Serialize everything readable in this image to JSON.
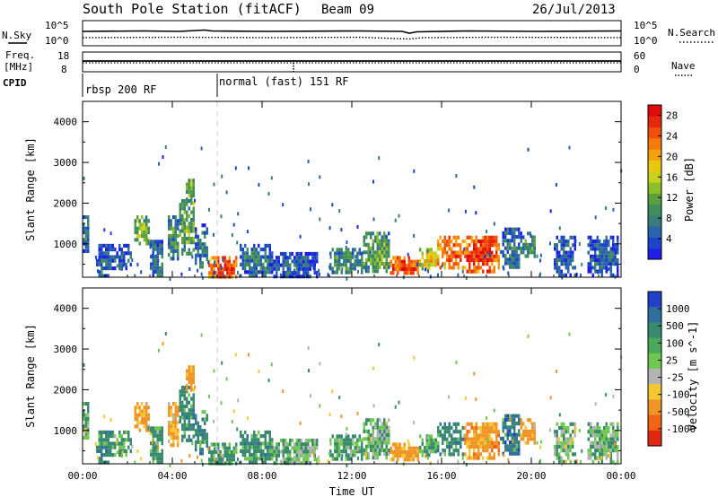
{
  "header": {
    "station": "South Pole Station (fitACF)",
    "beam": "Beam 09",
    "date": "26/Jul/2013"
  },
  "status_panels": {
    "nsky_label": "N.Sky",
    "nsky_ticks": [
      "10^5",
      "10^0"
    ],
    "nsearch_label": "N.Search",
    "nsearch_ticks": [
      "10^5",
      "10^0"
    ],
    "freq_label_1": "Freq.",
    "freq_label_2": "[MHz]",
    "freq_ticks": [
      "18",
      "8"
    ],
    "nave_label": "Nave",
    "nave_ticks": [
      "60",
      "0"
    ],
    "cpid_label": "CPID",
    "cpid_segments": [
      {
        "label": "rbsp 200 RF",
        "start_hour": 0
      },
      {
        "label": "normal (fast) 151 RF",
        "start_hour": 6
      }
    ]
  },
  "chart_data": [
    {
      "type": "heatmap",
      "title": "",
      "xlabel": "",
      "ylabel": "Slant Range [km]",
      "xlim": [
        0,
        24
      ],
      "ylim": [
        180,
        4500
      ],
      "x_tick_labels": [
        "00:00",
        "04:00",
        "08:00",
        "12:00",
        "16:00",
        "20:00",
        "00:00"
      ],
      "y_ticks": [
        1000,
        2000,
        3000,
        4000
      ],
      "colorbar": {
        "label": "Power [dB]",
        "ticks": [
          "4",
          "8",
          "12",
          "16",
          "20",
          "24",
          "28"
        ],
        "range": [
          0,
          30
        ],
        "colors": [
          "#1e1ee6",
          "#1c44c8",
          "#2a63b2",
          "#3a7c7c",
          "#3e8f5a",
          "#5aa040",
          "#8cbf2a",
          "#c8d21e",
          "#ecc70f",
          "#f5a00c",
          "#f57a0c",
          "#f0500c",
          "#e8280c",
          "#e00c0c"
        ]
      },
      "echo_regions": [
        {
          "t0": 0.0,
          "t1": 0.3,
          "r0": 800,
          "r1": 1700,
          "value": 8
        },
        {
          "t0": 0.6,
          "t1": 1.3,
          "r0": 220,
          "r1": 1000,
          "value": 6
        },
        {
          "t0": 1.3,
          "t1": 2.2,
          "r0": 400,
          "r1": 1000,
          "value": 6
        },
        {
          "t0": 2.3,
          "t1": 3.0,
          "r0": 1000,
          "r1": 1700,
          "value": 14
        },
        {
          "t0": 3.0,
          "t1": 3.6,
          "r0": 250,
          "r1": 1100,
          "value": 8
        },
        {
          "t0": 3.8,
          "t1": 4.3,
          "r0": 600,
          "r1": 1700,
          "value": 10
        },
        {
          "t0": 4.3,
          "t1": 5.0,
          "r0": 800,
          "r1": 2100,
          "value": 12
        },
        {
          "t0": 4.6,
          "t1": 5.0,
          "r0": 2000,
          "r1": 2600,
          "value": 14
        },
        {
          "t0": 5.0,
          "t1": 5.6,
          "r0": 400,
          "r1": 1500,
          "value": 8
        },
        {
          "t0": 5.6,
          "t1": 6.9,
          "r0": 220,
          "r1": 700,
          "value": 26
        },
        {
          "t0": 7.0,
          "t1": 8.5,
          "r0": 250,
          "r1": 1000,
          "value": 8
        },
        {
          "t0": 8.5,
          "t1": 10.5,
          "r0": 200,
          "r1": 800,
          "value": 6
        },
        {
          "t0": 11.0,
          "t1": 12.5,
          "r0": 300,
          "r1": 900,
          "value": 10
        },
        {
          "t0": 12.5,
          "t1": 13.7,
          "r0": 300,
          "r1": 1300,
          "value": 12
        },
        {
          "t0": 13.7,
          "t1": 15.0,
          "r0": 300,
          "r1": 700,
          "value": 26
        },
        {
          "t0": 15.0,
          "t1": 15.8,
          "r0": 400,
          "r1": 900,
          "value": 18
        },
        {
          "t0": 15.8,
          "t1": 17.0,
          "r0": 450,
          "r1": 1200,
          "value": 24
        },
        {
          "t0": 17.0,
          "t1": 18.6,
          "r0": 350,
          "r1": 1200,
          "value": 26
        },
        {
          "t0": 18.6,
          "t1": 19.5,
          "r0": 400,
          "r1": 1400,
          "value": 8
        },
        {
          "t0": 19.5,
          "t1": 20.2,
          "r0": 700,
          "r1": 1300,
          "value": 10
        },
        {
          "t0": 21.0,
          "t1": 22.0,
          "r0": 250,
          "r1": 1200,
          "value": 6
        },
        {
          "t0": 22.5,
          "t1": 23.9,
          "r0": 250,
          "r1": 1200,
          "value": 6
        }
      ]
    },
    {
      "type": "heatmap",
      "title": "",
      "xlabel": "Time UT",
      "ylabel": "Slant Range [km]",
      "xlim": [
        0,
        24
      ],
      "ylim": [
        180,
        4500
      ],
      "x_tick_labels": [
        "00:00",
        "04:00",
        "08:00",
        "12:00",
        "16:00",
        "20:00",
        "00:00"
      ],
      "y_ticks": [
        1000,
        2000,
        3000,
        4000
      ],
      "colorbar": {
        "label": "Velocity [m s^-1]",
        "ticks": [
          "1000",
          "500",
          "100",
          "25",
          "-25",
          "-100",
          "-500",
          "-1000"
        ],
        "colors": [
          "#2040c8",
          "#2f6fa0",
          "#3a8a70",
          "#4aa85a",
          "#70c850",
          "#b4b4b4",
          "#f5c832",
          "#f09628",
          "#f06414",
          "#e02810"
        ]
      },
      "echo_regions": [
        {
          "t0": 0.0,
          "t1": 0.3,
          "r0": 800,
          "r1": 1700,
          "value": 100
        },
        {
          "t0": 0.6,
          "t1": 1.3,
          "r0": 220,
          "r1": 1000,
          "value": 300
        },
        {
          "t0": 1.3,
          "t1": 2.2,
          "r0": 400,
          "r1": 1000,
          "value": 200
        },
        {
          "t0": 2.3,
          "t1": 3.0,
          "r0": 1000,
          "r1": 1700,
          "value": -150
        },
        {
          "t0": 3.0,
          "t1": 3.6,
          "r0": 250,
          "r1": 1100,
          "value": 200
        },
        {
          "t0": 3.8,
          "t1": 4.3,
          "r0": 600,
          "r1": 1700,
          "value": -100
        },
        {
          "t0": 4.3,
          "t1": 5.0,
          "r0": 800,
          "r1": 2100,
          "value": 300
        },
        {
          "t0": 4.6,
          "t1": 5.0,
          "r0": 2000,
          "r1": 2600,
          "value": -200
        },
        {
          "t0": 5.0,
          "t1": 5.6,
          "r0": 400,
          "r1": 1500,
          "value": 400
        },
        {
          "t0": 5.6,
          "t1": 6.9,
          "r0": 220,
          "r1": 700,
          "value": 200
        },
        {
          "t0": 7.0,
          "t1": 8.5,
          "r0": 250,
          "r1": 1000,
          "value": 300
        },
        {
          "t0": 8.5,
          "t1": 10.5,
          "r0": 200,
          "r1": 800,
          "value": 80
        },
        {
          "t0": 11.0,
          "t1": 12.5,
          "r0": 300,
          "r1": 900,
          "value": 150
        },
        {
          "t0": 12.5,
          "t1": 13.7,
          "r0": 300,
          "r1": 1300,
          "value": 80
        },
        {
          "t0": 13.7,
          "t1": 15.0,
          "r0": 300,
          "r1": 700,
          "value": -200
        },
        {
          "t0": 15.0,
          "t1": 15.8,
          "r0": 400,
          "r1": 900,
          "value": 100
        },
        {
          "t0": 15.8,
          "t1": 17.0,
          "r0": 450,
          "r1": 1200,
          "value": 300
        },
        {
          "t0": 17.0,
          "t1": 18.6,
          "r0": 350,
          "r1": 1200,
          "value": -300
        },
        {
          "t0": 18.6,
          "t1": 19.5,
          "r0": 400,
          "r1": 1400,
          "value": 600
        },
        {
          "t0": 19.5,
          "t1": 20.2,
          "r0": 700,
          "r1": 1300,
          "value": -200
        },
        {
          "t0": 21.0,
          "t1": 22.0,
          "r0": 250,
          "r1": 1200,
          "value": 60
        },
        {
          "t0": 22.5,
          "t1": 23.9,
          "r0": 250,
          "r1": 1200,
          "value": 80
        }
      ]
    }
  ]
}
